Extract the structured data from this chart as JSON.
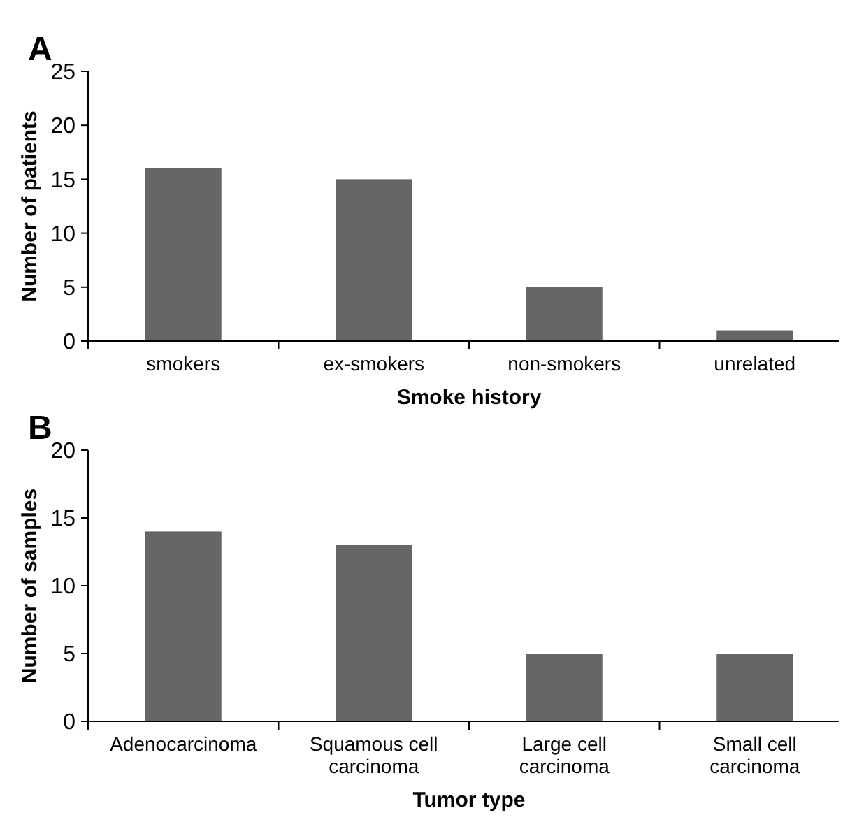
{
  "chart_data": [
    {
      "type": "bar",
      "title": "A",
      "categories": [
        "smokers",
        "ex-smokers",
        "non-smokers",
        "unrelated"
      ],
      "values": [
        16,
        15,
        5,
        1
      ],
      "color": "#666666",
      "ylim": [
        0,
        25
      ],
      "yticks": [
        0,
        5,
        10,
        15,
        20,
        25
      ],
      "xlabel": "Smoke history",
      "ylabel": "Number of patients"
    },
    {
      "type": "bar",
      "title": "B",
      "categories": [
        "Adenocarcinoma",
        "Squamous cell carcinoma",
        "Large cell carcinoma",
        "Small cell carcinoma"
      ],
      "values": [
        14,
        13,
        5,
        5
      ],
      "color": "#666666",
      "ylim": [
        0,
        20
      ],
      "yticks": [
        0,
        5,
        10,
        15,
        20
      ],
      "xlabel": "Tumor type",
      "ylabel": "Number of samples"
    }
  ]
}
